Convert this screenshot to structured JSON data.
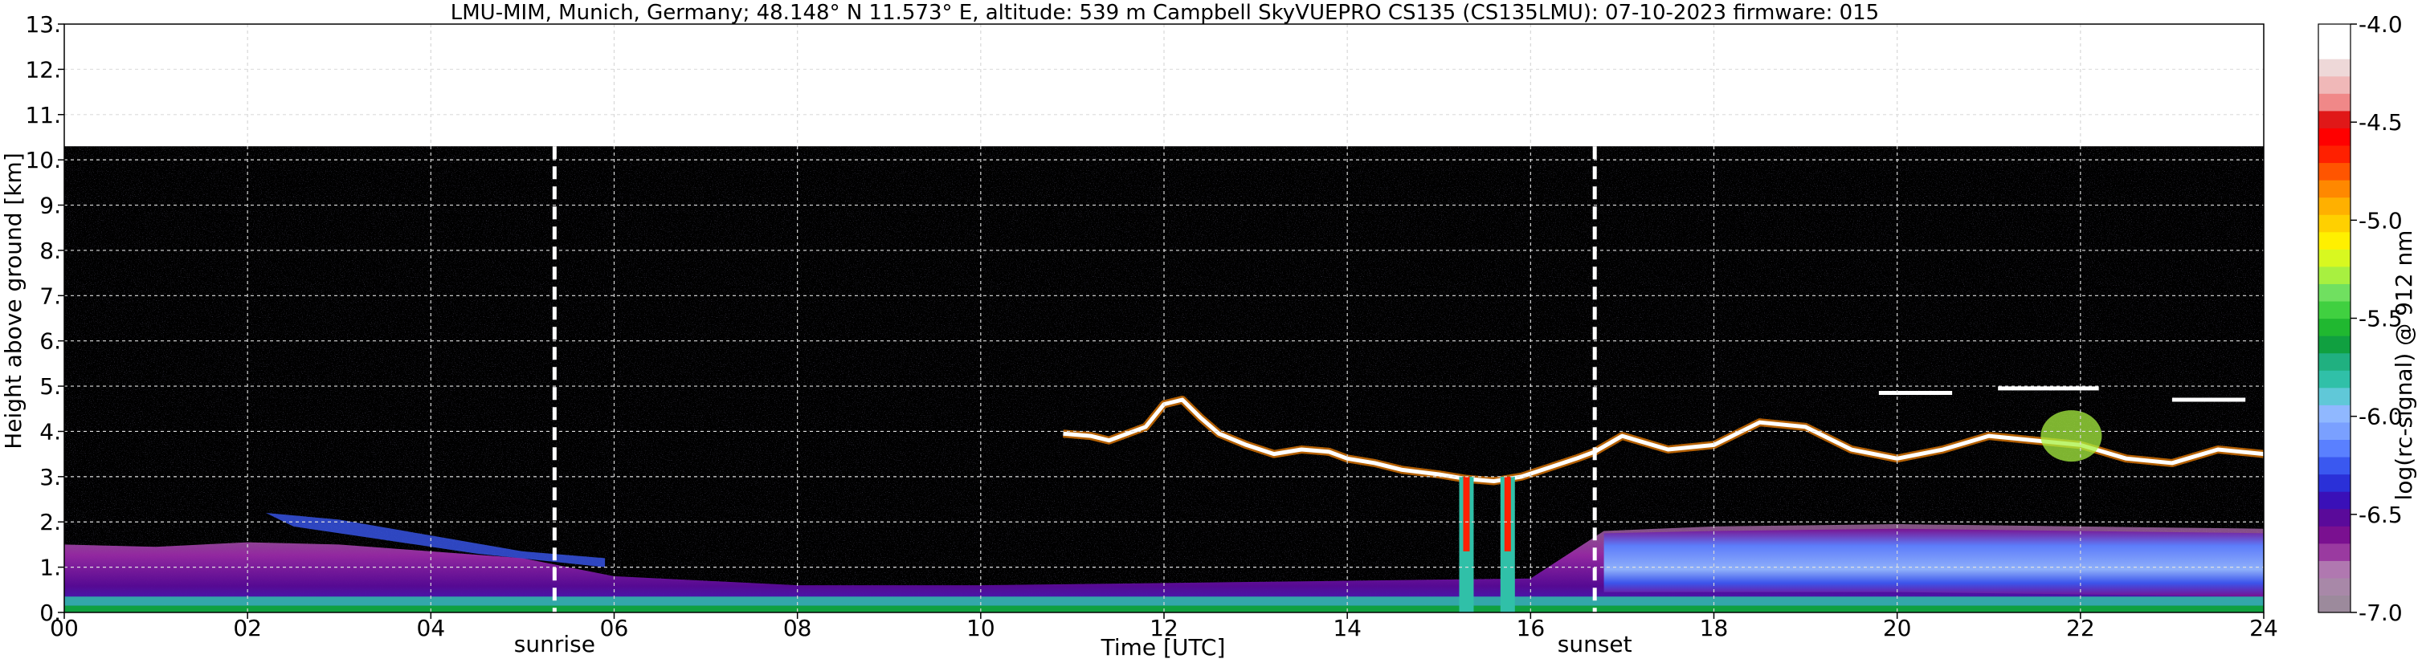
{
  "chart_data": {
    "type": "heatmap",
    "title": "LMU-MIM, Munich, Germany; 48.148° N 11.573° E, altitude: 539 m    Campbell SkyVUEPRO CS135 (CS135LMU): 07-10-2023    firmware: 015",
    "xlabel": "Time [UTC]",
    "ylabel": "Height above ground [km]",
    "xlim": [
      0,
      24
    ],
    "ylim": [
      0,
      13
    ],
    "x_ticks": [
      "00",
      "02",
      "04",
      "06",
      "08",
      "10",
      "12",
      "14",
      "16",
      "18",
      "20",
      "22",
      "24"
    ],
    "y_ticks": [
      "0.",
      "1.",
      "2.",
      "3.",
      "4.",
      "5.",
      "6.",
      "7.",
      "8.",
      "9.",
      "10.",
      "11.",
      "12.",
      "13."
    ],
    "grid": true,
    "data_top_km": 10.3,
    "events": [
      {
        "label": "sunrise",
        "time_h": 5.35
      },
      {
        "label": "sunset",
        "time_h": 16.7
      }
    ],
    "colorbar": {
      "label": "log(rc-signal) @ 912 nm",
      "range": [
        -7.0,
        -4.0
      ],
      "ticks": [
        "-4.0",
        "-4.5",
        "-5.0",
        "-5.5",
        "-6.0",
        "-6.5",
        "-7.0"
      ],
      "colors": [
        "#9c8a9c",
        "#a888a8",
        "#b078b0",
        "#9a3aa0",
        "#7a1090",
        "#5a0a9a",
        "#3a10b8",
        "#2a30d8",
        "#3a58f0",
        "#5a80ff",
        "#7aa0ff",
        "#90b8ff",
        "#60c8d8",
        "#30c0a8",
        "#20b080",
        "#10a040",
        "#20b830",
        "#40d040",
        "#70e060",
        "#a8f040",
        "#d8f820",
        "#fff000",
        "#ffd000",
        "#ffb000",
        "#ff8800",
        "#ff5500",
        "#ff2000",
        "#ff0000",
        "#e01818",
        "#f08888",
        "#f0b8b8",
        "#eed8d8",
        "#ffffff",
        "#ffffff"
      ]
    },
    "features": {
      "cloud_layer": [
        [
          10.9,
          3.95
        ],
        [
          11.2,
          3.9
        ],
        [
          11.4,
          3.8
        ],
        [
          11.6,
          3.95
        ],
        [
          11.8,
          4.1
        ],
        [
          12.0,
          4.6
        ],
        [
          12.2,
          4.7
        ],
        [
          12.4,
          4.3
        ],
        [
          12.6,
          3.95
        ],
        [
          12.9,
          3.7
        ],
        [
          13.2,
          3.5
        ],
        [
          13.5,
          3.6
        ],
        [
          13.8,
          3.55
        ],
        [
          14.0,
          3.4
        ],
        [
          14.3,
          3.3
        ],
        [
          14.6,
          3.15
        ],
        [
          15.0,
          3.05
        ],
        [
          15.3,
          2.95
        ],
        [
          15.6,
          2.9
        ],
        [
          15.9,
          3.0
        ],
        [
          16.2,
          3.2
        ],
        [
          16.5,
          3.4
        ],
        [
          16.7,
          3.55
        ],
        [
          17.0,
          3.9
        ],
        [
          17.5,
          3.6
        ],
        [
          18.0,
          3.7
        ],
        [
          18.5,
          4.2
        ],
        [
          19.0,
          4.1
        ],
        [
          19.5,
          3.6
        ],
        [
          20.0,
          3.4
        ],
        [
          20.5,
          3.6
        ],
        [
          21.0,
          3.9
        ],
        [
          21.5,
          3.8
        ],
        [
          22.0,
          3.7
        ],
        [
          22.5,
          3.4
        ],
        [
          23.0,
          3.3
        ],
        [
          23.5,
          3.6
        ],
        [
          24.0,
          3.5
        ]
      ],
      "upper_clouds": [
        {
          "x0": 21.1,
          "x1": 22.2,
          "y": 4.95
        },
        {
          "x0": 19.8,
          "x1": 20.6,
          "y": 4.85
        },
        {
          "x0": 23.0,
          "x1": 23.8,
          "y": 4.7
        }
      ],
      "precipitation_shafts": [
        {
          "time_h": 15.3,
          "bottom_km": 0.0,
          "top_km": 3.0
        },
        {
          "time_h": 15.75,
          "bottom_km": 0.0,
          "top_km": 3.0
        }
      ],
      "boundary_layer": [
        [
          0,
          1.5
        ],
        [
          1,
          1.45
        ],
        [
          2,
          1.55
        ],
        [
          3,
          1.5
        ],
        [
          4,
          1.35
        ],
        [
          5,
          1.2
        ],
        [
          6,
          0.8
        ],
        [
          8,
          0.6
        ],
        [
          10,
          0.6
        ],
        [
          12,
          0.65
        ],
        [
          14,
          0.7
        ],
        [
          16,
          0.75
        ],
        [
          16.8,
          1.8
        ],
        [
          18,
          1.9
        ],
        [
          20,
          1.95
        ],
        [
          22,
          1.9
        ],
        [
          24,
          1.85
        ]
      ]
    }
  }
}
